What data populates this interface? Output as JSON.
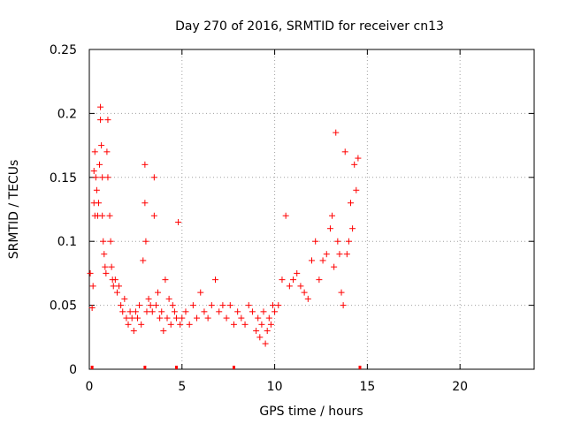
{
  "chart_data": {
    "type": "scatter",
    "title": "Day 270 of 2016, SRMTID for receiver cn13",
    "xlabel": "GPS time / hours",
    "ylabel": "SRMTID / TECUs",
    "xlim": [
      0,
      24
    ],
    "ylim": [
      0,
      0.25
    ],
    "x_ticks": [
      0,
      5,
      10,
      15,
      20
    ],
    "x_tick_labels": [
      "0",
      "5",
      "10",
      "15",
      "20"
    ],
    "y_ticks": [
      0,
      0.05,
      0.1,
      0.15,
      0.2,
      0.25
    ],
    "y_tick_labels": [
      "0",
      "0.05",
      "0.1",
      "0.15",
      "0.2",
      "0.25"
    ],
    "grid": true,
    "marker": "+",
    "series": [
      {
        "name": "SRMTID",
        "color": "#ff0000",
        "x": [
          0.05,
          0.15,
          0.2,
          0.25,
          0.25,
          0.3,
          0.3,
          0.35,
          0.4,
          0.45,
          0.5,
          0.55,
          0.6,
          0.6,
          0.65,
          0.7,
          0.7,
          0.75,
          0.8,
          0.85,
          0.9,
          0.95,
          1.0,
          1.0,
          1.1,
          1.15,
          1.2,
          1.25,
          1.3,
          1.4,
          1.5,
          1.6,
          1.7,
          1.8,
          1.9,
          2.0,
          2.1,
          2.2,
          2.3,
          2.4,
          2.5,
          2.6,
          2.7,
          2.8,
          2.9,
          3.0,
          3.0,
          3.05,
          3.1,
          3.2,
          3.3,
          3.4,
          3.5,
          3.5,
          3.6,
          3.7,
          3.8,
          3.9,
          4.0,
          4.1,
          4.2,
          4.3,
          4.4,
          4.5,
          4.6,
          4.7,
          4.8,
          4.9,
          5.0,
          5.2,
          5.4,
          5.6,
          5.8,
          6.0,
          6.2,
          6.4,
          6.6,
          6.8,
          7.0,
          7.2,
          7.4,
          7.6,
          7.8,
          8.0,
          8.2,
          8.4,
          8.6,
          8.8,
          9.0,
          9.1,
          9.2,
          9.3,
          9.4,
          9.5,
          9.6,
          9.7,
          9.8,
          9.9,
          10.0,
          10.2,
          10.4,
          10.6,
          10.8,
          11.0,
          11.2,
          11.4,
          11.6,
          11.8,
          12.0,
          12.2,
          12.4,
          12.6,
          12.8,
          13.0,
          13.1,
          13.2,
          13.3,
          13.4,
          13.5,
          13.6,
          13.7,
          13.8,
          13.9,
          14.0,
          14.1,
          14.2,
          14.3,
          14.4,
          14.5
        ],
        "y": [
          0.075,
          0.048,
          0.065,
          0.13,
          0.155,
          0.17,
          0.12,
          0.15,
          0.14,
          0.12,
          0.13,
          0.16,
          0.205,
          0.195,
          0.175,
          0.15,
          0.12,
          0.1,
          0.09,
          0.08,
          0.075,
          0.17,
          0.195,
          0.15,
          0.12,
          0.1,
          0.08,
          0.07,
          0.065,
          0.07,
          0.06,
          0.065,
          0.05,
          0.045,
          0.055,
          0.04,
          0.035,
          0.045,
          0.04,
          0.03,
          0.045,
          0.04,
          0.05,
          0.035,
          0.085,
          0.16,
          0.13,
          0.1,
          0.045,
          0.055,
          0.05,
          0.045,
          0.15,
          0.12,
          0.05,
          0.06,
          0.04,
          0.045,
          0.03,
          0.07,
          0.04,
          0.055,
          0.035,
          0.05,
          0.045,
          0.04,
          0.115,
          0.035,
          0.04,
          0.045,
          0.035,
          0.05,
          0.04,
          0.06,
          0.045,
          0.04,
          0.05,
          0.07,
          0.045,
          0.05,
          0.04,
          0.05,
          0.035,
          0.045,
          0.04,
          0.035,
          0.05,
          0.045,
          0.03,
          0.04,
          0.025,
          0.035,
          0.045,
          0.02,
          0.03,
          0.04,
          0.035,
          0.05,
          0.045,
          0.05,
          0.07,
          0.12,
          0.065,
          0.07,
          0.075,
          0.065,
          0.06,
          0.055,
          0.085,
          0.1,
          0.07,
          0.085,
          0.09,
          0.11,
          0.12,
          0.08,
          0.185,
          0.1,
          0.09,
          0.06,
          0.05,
          0.17,
          0.09,
          0.1,
          0.13,
          0.11,
          0.16,
          0.14,
          0.165
        ]
      }
    ],
    "axis_markers_x": [
      0.15,
      3.0,
      4.7,
      7.8,
      14.6
    ]
  }
}
